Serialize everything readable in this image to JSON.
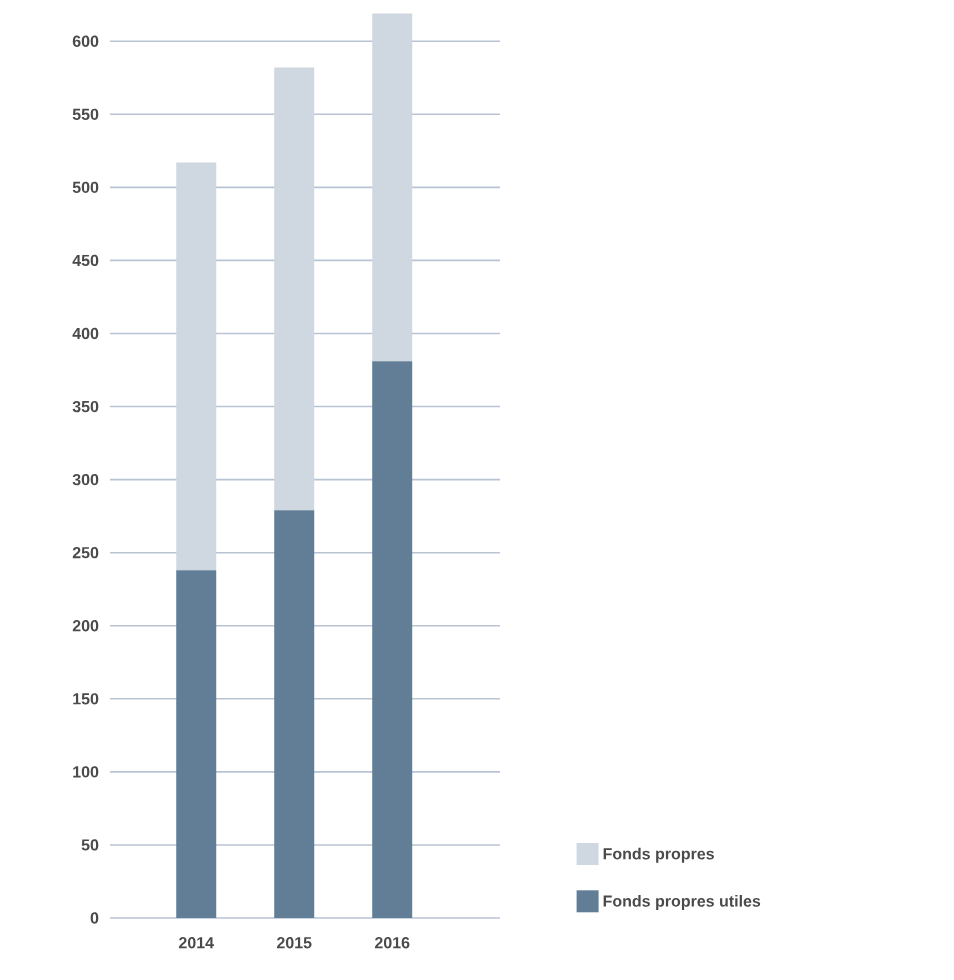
{
  "chart_data": {
    "type": "bar",
    "stacked": true,
    "categories": [
      "2014",
      "2015",
      "2016"
    ],
    "series": [
      {
        "name": "Fonds propres utiles",
        "color": "#627e97",
        "values": [
          238,
          279,
          381
        ]
      },
      {
        "name": "Fonds propres",
        "color": "#cfd8e0",
        "values": [
          279,
          303,
          238
        ]
      }
    ],
    "ylim": [
      0,
      620
    ],
    "yticks": [
      0,
      50,
      100,
      150,
      200,
      250,
      300,
      350,
      400,
      450,
      500,
      550,
      600
    ],
    "grid": "y",
    "legend": "bottom right"
  }
}
